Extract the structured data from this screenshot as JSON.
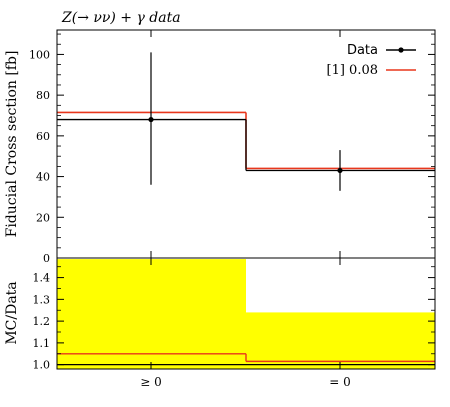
{
  "chart_data": [
    {
      "type": "line",
      "title": "Z(→ νν) + γ data",
      "xlabel": "",
      "ylabel": "Fiducial Cross section [fb]",
      "categories": [
        "≥ 0",
        "= 0"
      ],
      "ylim": [
        0,
        112
      ],
      "yticks": [
        0,
        20,
        40,
        60,
        80,
        100
      ],
      "grid": false,
      "legend_position": "top-right",
      "series": [
        {
          "name": "Data",
          "style": "points-with-errorbars",
          "color": "#000000",
          "values": [
            68,
            43
          ],
          "err_lo": [
            32,
            10
          ],
          "err_hi": [
            33,
            10
          ],
          "hline_values": [
            68,
            43
          ]
        },
        {
          "name": "[1] 0.08",
          "style": "step",
          "color": "#e8361c",
          "values": [
            71.5,
            44
          ]
        }
      ]
    },
    {
      "type": "area",
      "title": "",
      "ylabel": "MC/Data",
      "categories": [
        "≥ 0",
        "= 0"
      ],
      "ylim": [
        0.98,
        1.49
      ],
      "yticks": [
        "1.0",
        "1.1",
        "1.2",
        "1.3",
        "1.4"
      ],
      "yticks_numeric": [
        1.0,
        1.1,
        1.2,
        1.3,
        1.4
      ],
      "band_color": "#ffff00",
      "series": [
        {
          "name": "Data uncertainty band",
          "band_upper": [
            1.485,
            1.24
          ],
          "band_lower": [
            0.98,
            0.98
          ]
        },
        {
          "name": "[1] 0.08",
          "style": "step",
          "color": "#e8361c",
          "values": [
            1.05,
            1.015
          ]
        },
        {
          "name": "Data",
          "style": "step",
          "color": "#000000",
          "values": [
            1.0,
            1.0
          ]
        }
      ]
    }
  ]
}
